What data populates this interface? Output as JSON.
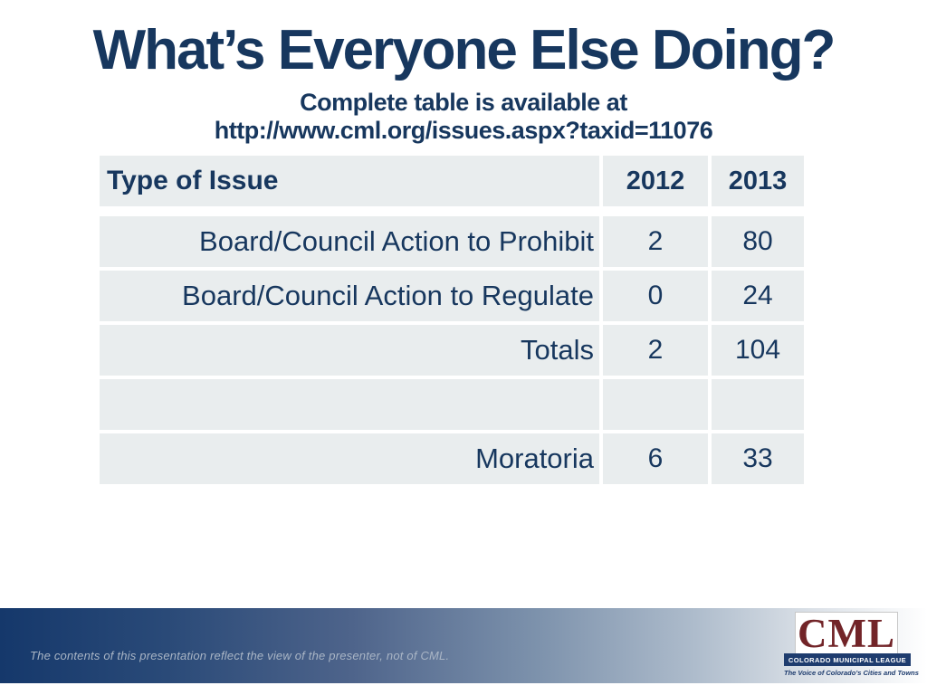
{
  "slide": {
    "title": "What’s Everyone Else Doing?",
    "subtitle": {
      "line1": "Complete table is available at",
      "line2": "http://www.cml.org/issues.aspx?taxid=11076"
    }
  },
  "table": {
    "header": [
      "Type of Issue",
      "2012",
      "2013"
    ],
    "rows": [
      [
        "Board/Council Action to Prohibit",
        "2",
        "80"
      ],
      [
        "Board/Council Action to Regulate",
        "0",
        "24"
      ],
      [
        "Totals",
        "2",
        "104"
      ],
      [
        "",
        "",
        ""
      ],
      [
        "Moratoria",
        "6",
        "33"
      ]
    ]
  },
  "footer": {
    "disclaimer": "The contents of this presentation reflect the view of the presenter, not of CML.",
    "logo": {
      "acronym": "CML",
      "org_name": "COLORADO MUNICIPAL LEAGUE",
      "tagline": "The Voice of Colorado’s Cities and Towns"
    }
  },
  "colors": {
    "title_navy": "#17375E",
    "cell_background": "#E9EDEE",
    "footer_gradient_dark": "#15386B",
    "logo_maroon": "#722428",
    "logo_bar_navy": "#1E3C6E"
  }
}
